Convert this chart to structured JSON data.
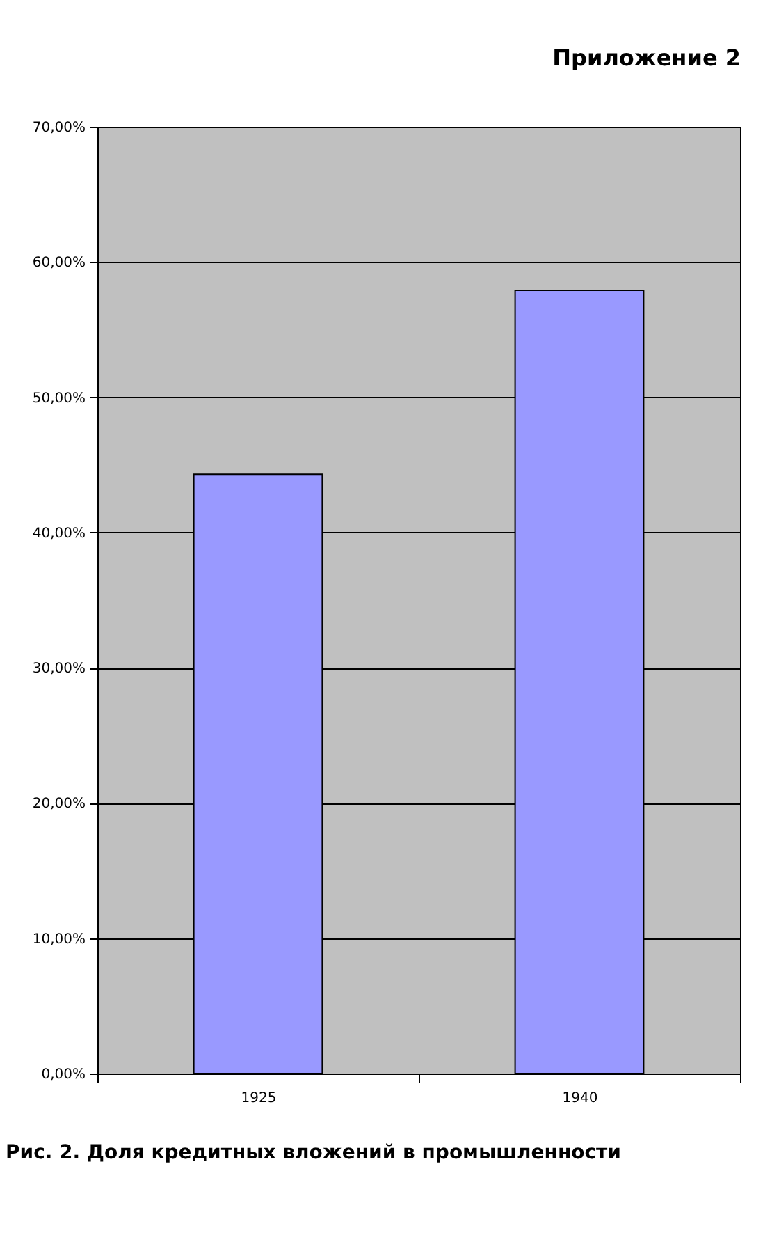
{
  "chart_data": {
    "type": "bar",
    "title": "Приложение 2",
    "annotations": [
      "Рис. 2. Доля кредитных вложений в промышленности"
    ],
    "categories": [
      "1925",
      "1940"
    ],
    "values": [
      44.3,
      57.9
    ],
    "color": "#9999ff",
    "ylim": [
      0,
      70
    ],
    "yticks": [
      {
        "value": 0,
        "label": "0,00%"
      },
      {
        "value": 10,
        "label": "10,00%"
      },
      {
        "value": 20,
        "label": "20,00%"
      },
      {
        "value": 30,
        "label": "30,00%"
      },
      {
        "value": 40,
        "label": "40,00%"
      },
      {
        "value": 50,
        "label": "50,00%"
      },
      {
        "value": 60,
        "label": "60,00%"
      },
      {
        "value": 70,
        "label": "70,00%"
      }
    ],
    "grid": "y"
  }
}
